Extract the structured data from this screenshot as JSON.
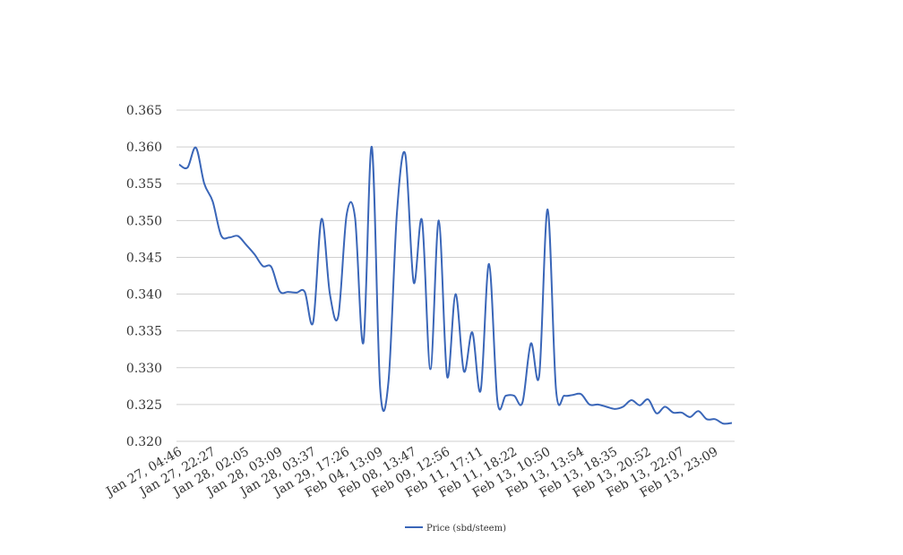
{
  "chart_data": {
    "type": "line",
    "categories": [
      "Jan 27, 04:46",
      null,
      null,
      null,
      "Jan 27, 22:27",
      null,
      null,
      null,
      "Jan 28, 02:05",
      null,
      null,
      null,
      "Jan 28, 03:09",
      null,
      null,
      null,
      "Jan 28, 03:37",
      null,
      null,
      null,
      "Jan 29, 17:26",
      null,
      null,
      null,
      "Feb 04, 13:09",
      null,
      null,
      null,
      "Feb 08, 13:47",
      null,
      null,
      null,
      "Feb 09, 12:56",
      null,
      null,
      null,
      "Feb 11, 17:11",
      null,
      null,
      null,
      "Feb 11, 18:22",
      null,
      null,
      null,
      "Feb 13, 10:50",
      null,
      null,
      null,
      "Feb 13, 13:54",
      null,
      null,
      null,
      "Feb 13, 18:35",
      null,
      null,
      null,
      "Feb 13, 20:52",
      null,
      null,
      null,
      "Feb 13, 22:07",
      null,
      null,
      null,
      "Feb 13, 23:09",
      null,
      null
    ],
    "series": [
      {
        "name": "Price (sbd/steem)",
        "color": "#3a66b8",
        "values": [
          0.3576,
          0.3572,
          0.3599,
          0.355,
          0.3526,
          0.348,
          0.3477,
          0.3479,
          0.3467,
          0.3454,
          0.3438,
          0.3437,
          0.3404,
          0.3403,
          0.3402,
          0.3403,
          0.3362,
          0.3502,
          0.34,
          0.337,
          0.3508,
          0.3504,
          0.3334,
          0.36,
          0.3272,
          0.3282,
          0.351,
          0.359,
          0.3416,
          0.35,
          0.3298,
          0.35,
          0.3288,
          0.34,
          0.3295,
          0.3348,
          0.3269,
          0.3441,
          0.3255,
          0.3262,
          0.3262,
          0.3253,
          0.3333,
          0.329,
          0.3515,
          0.327,
          0.3262,
          0.3263,
          0.3264,
          0.325,
          0.325,
          0.3247,
          0.3244,
          0.3247,
          0.3256,
          0.3249,
          0.3257,
          0.3238,
          0.3247,
          0.3239,
          0.3239,
          0.3233,
          0.3241,
          0.323,
          0.323,
          0.3224,
          0.3225
        ]
      }
    ],
    "ylim": [
      0.32,
      0.365
    ],
    "yticks": [
      {
        "value": 0.32,
        "label": "0.320"
      },
      {
        "value": 0.325,
        "label": "0.325"
      },
      {
        "value": 0.33,
        "label": "0.330"
      },
      {
        "value": 0.335,
        "label": "0.335"
      },
      {
        "value": 0.34,
        "label": "0.340"
      },
      {
        "value": 0.345,
        "label": "0.345"
      },
      {
        "value": 0.35,
        "label": "0.350"
      },
      {
        "value": 0.355,
        "label": "0.355"
      },
      {
        "value": 0.36,
        "label": "0.360"
      },
      {
        "value": 0.365,
        "label": "0.365"
      }
    ],
    "grid": true,
    "legend": "bottom"
  }
}
